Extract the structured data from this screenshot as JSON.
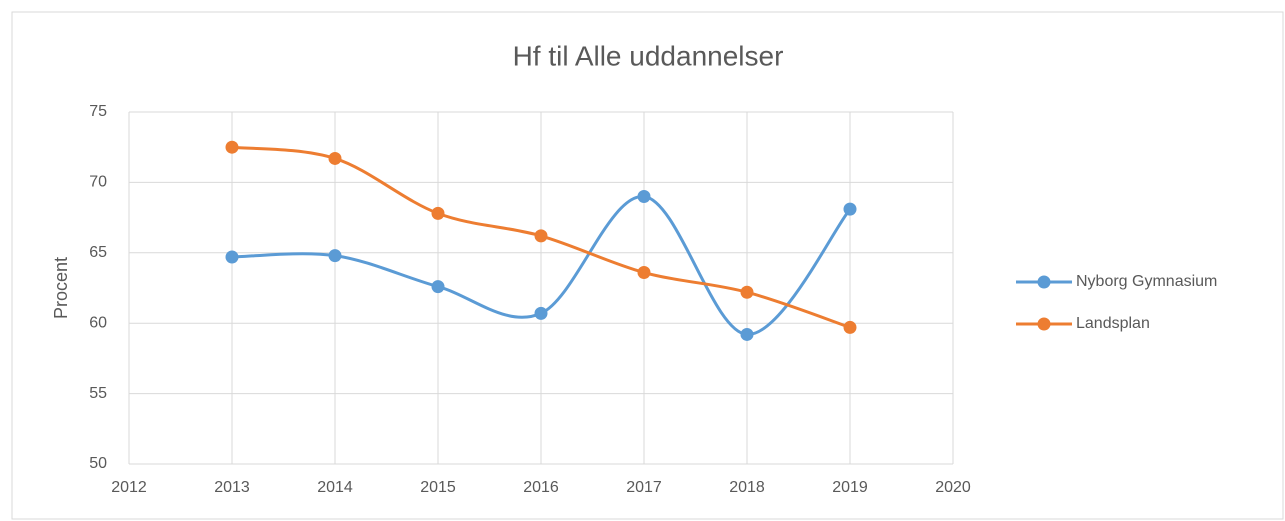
{
  "chart_data": {
    "type": "line",
    "title": "Hf til Alle uddannelser",
    "y_label": "Procent",
    "x": [
      2013,
      2014,
      2015,
      2016,
      2017,
      2018,
      2019
    ],
    "series": [
      {
        "name": "Nyborg Gymnasium",
        "color": "#5b9bd5",
        "values": [
          64.7,
          64.8,
          62.6,
          60.7,
          69.0,
          59.2,
          68.1
        ]
      },
      {
        "name": "Landsplan",
        "color": "#ed7d31",
        "values": [
          72.5,
          71.7,
          67.8,
          66.2,
          63.6,
          62.2,
          59.7
        ]
      }
    ],
    "xlim": [
      2012,
      2020
    ],
    "xticks": [
      2012,
      2013,
      2014,
      2015,
      2016,
      2017,
      2018,
      2019,
      2020
    ],
    "ylim": [
      50,
      75
    ],
    "yticks": [
      50,
      55,
      60,
      65,
      70,
      75
    ],
    "grid": true,
    "smooth": true,
    "legend": "right"
  }
}
